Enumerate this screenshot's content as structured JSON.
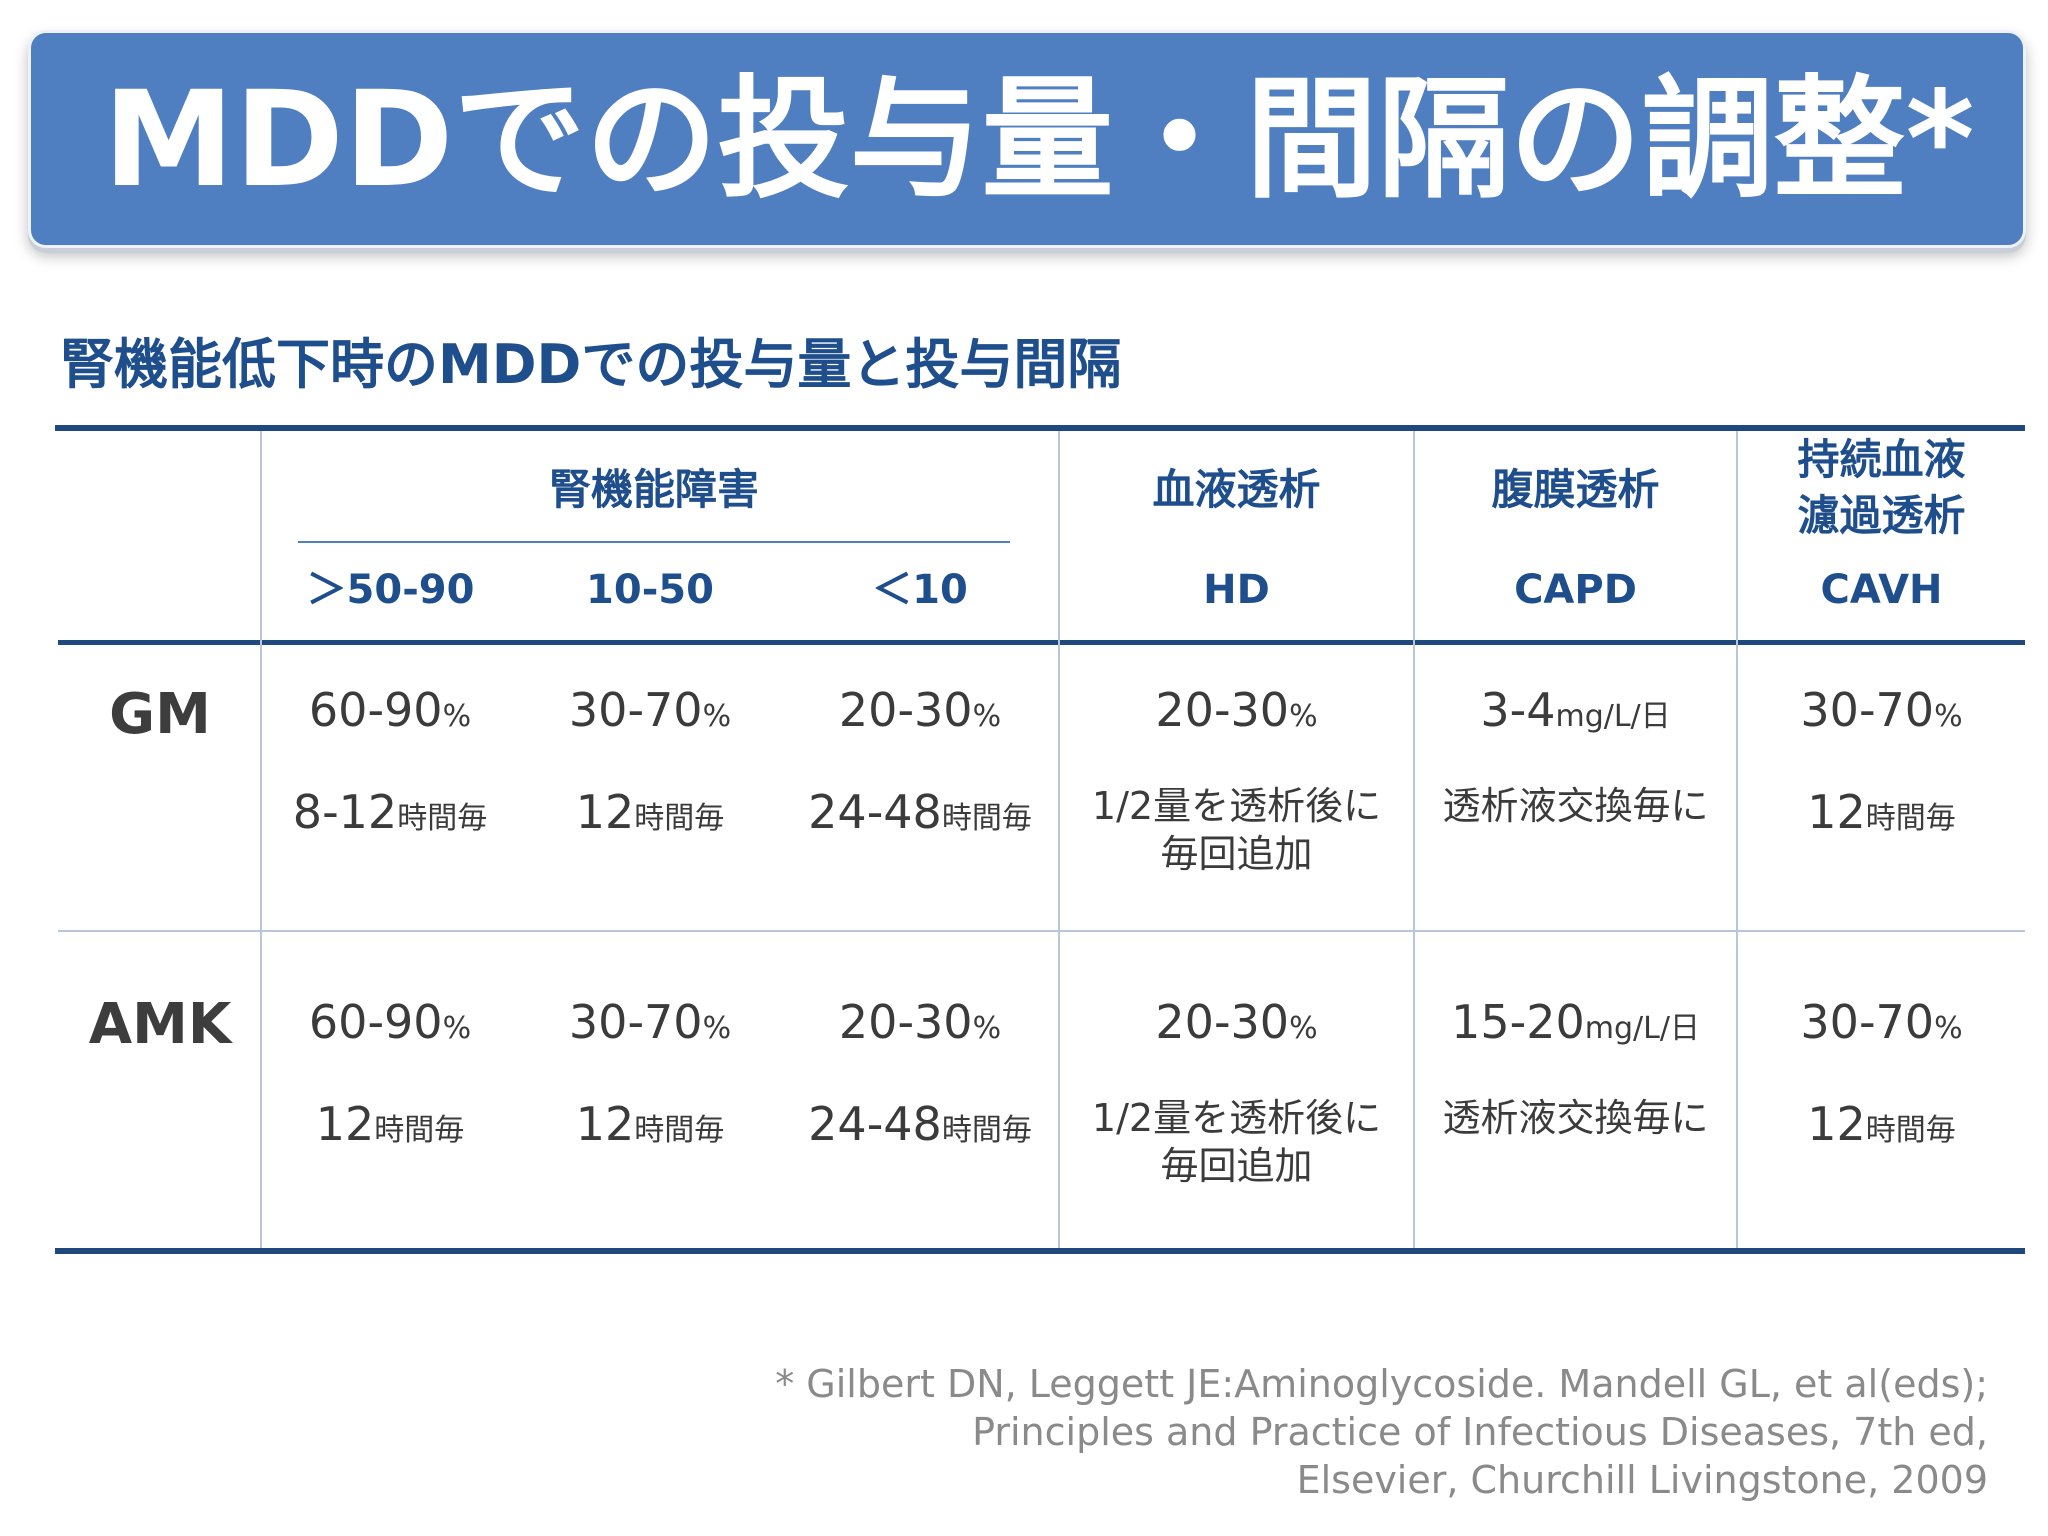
{
  "title": "MDDでの投与量・間隔の調整*",
  "subtitle": "腎機能低下時のMDDでの投与量と投与間隔",
  "table": {
    "headers": {
      "renal": "腎機能障害",
      "renal_sub": [
        "＞50-90",
        "10-50",
        "＜10"
      ],
      "hd": "血液透析",
      "hd_sub": "HD",
      "capd": "腹膜透析",
      "capd_sub": "CAPD",
      "cavh_line1": "持続血液",
      "cavh_line2": "濾過透析",
      "cavh_sub": "CAVH"
    },
    "rows": [
      {
        "label": "GM",
        "dose": [
          {
            "num": "60-90",
            "unit": "%"
          },
          {
            "num": "30-70",
            "unit": "%"
          },
          {
            "num": "20-30",
            "unit": "%"
          },
          {
            "num": "20-30",
            "unit": "%"
          },
          {
            "num": "3-4",
            "unit": "mg/L/日"
          },
          {
            "num": "30-70",
            "unit": "%"
          }
        ],
        "interval": [
          {
            "num": "8-12",
            "unit": "時間毎"
          },
          {
            "num": "12",
            "unit": "時間毎"
          },
          {
            "num": "24-48",
            "unit": "時間毎"
          },
          {
            "line1": "1/2量を透析後に",
            "line2": "毎回追加"
          },
          {
            "line1": "透析液交換毎に"
          },
          {
            "num": "12",
            "unit": "時間毎"
          }
        ]
      },
      {
        "label": "AMK",
        "dose": [
          {
            "num": "60-90",
            "unit": "%"
          },
          {
            "num": "30-70",
            "unit": "%"
          },
          {
            "num": "20-30",
            "unit": "%"
          },
          {
            "num": "20-30",
            "unit": "%"
          },
          {
            "num": "15-20",
            "unit": "mg/L/日"
          },
          {
            "num": "30-70",
            "unit": "%"
          }
        ],
        "interval": [
          {
            "num": "12",
            "unit": "時間毎"
          },
          {
            "num": "12",
            "unit": "時間毎"
          },
          {
            "num": "24-48",
            "unit": "時間毎"
          },
          {
            "line1": "1/2量を透析後に",
            "line2": "毎回追加"
          },
          {
            "line1": "透析液交換毎に"
          },
          {
            "num": "12",
            "unit": "時間毎"
          }
        ]
      }
    ]
  },
  "reference": {
    "line1": "* Gilbert DN, Leggett JE:Aminoglycoside. Mandell GL, et al(eds);",
    "line2": "Principles and Practice of Infectious Diseases, 7th ed,",
    "line3": "Elsevier,  Churchill Livingstone, 2009"
  }
}
